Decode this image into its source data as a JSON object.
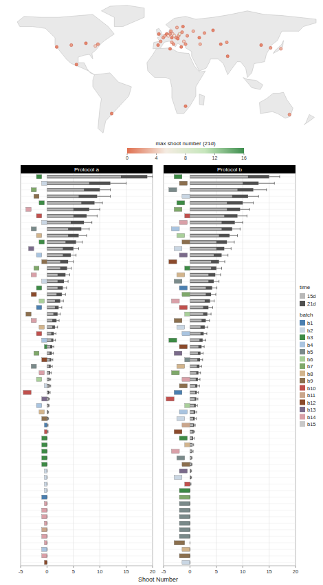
{
  "chart_data": [
    {
      "type": "map",
      "xlim": [
        -180,
        180
      ],
      "ylim": [
        -60,
        85
      ],
      "tick_labels": false,
      "points": {
        "lon": [
          2,
          4,
          6,
          8,
          10,
          13,
          12,
          15,
          17,
          20,
          19,
          21,
          24,
          25,
          18,
          11,
          -3,
          -1,
          -4,
          12,
          14,
          23,
          26,
          30,
          37,
          44,
          28,
          50,
          45,
          69,
          76,
          60,
          -74,
          -88,
          -77,
          -122,
          -105,
          -99,
          139,
          127,
          116,
          -58,
          149,
          77,
          10,
          28
        ],
        "lat": [
          48,
          50,
          52,
          50,
          52,
          52,
          48,
          50,
          48,
          50,
          47,
          52,
          54,
          60,
          59,
          55,
          52,
          44,
          40,
          43,
          41,
          38,
          44,
          50,
          55,
          48,
          41,
          53,
          41,
          41,
          43,
          56,
          41,
          42,
          39,
          38,
          40,
          19,
          36,
          37,
          40,
          -34,
          -35,
          28,
          36,
          -26
        ],
        "values": [
          2,
          3,
          1,
          5,
          2,
          4,
          1,
          6,
          2,
          3,
          1,
          8,
          2,
          1,
          3,
          2,
          1,
          2,
          1,
          3,
          2,
          1,
          4,
          2,
          3,
          1,
          2,
          2,
          3,
          1,
          2,
          1,
          2,
          1,
          4,
          1,
          2,
          1,
          3,
          2,
          1,
          1,
          2,
          1,
          1,
          1
        ]
      },
      "colorbar": {
        "title": "max shoot number (21d)",
        "range": [
          0,
          16
        ],
        "ticks": [
          0,
          4,
          8,
          12,
          16
        ],
        "colors": [
          "#e07050",
          "#f4ece2",
          "#c6e6bc",
          "#3f8f4f"
        ]
      }
    },
    {
      "type": "bar",
      "orientation": "horizontal",
      "title": "Protocol a",
      "x_label": "Shoot Number",
      "xlim": [
        -5,
        20
      ],
      "xticks": [
        -5,
        0,
        5,
        10,
        15,
        20
      ],
      "grid": true,
      "tick_labels": "x",
      "legend": "right",
      "categories": [
        null,
        null,
        null,
        null,
        null,
        null,
        null,
        null,
        null,
        null,
        null,
        null,
        null,
        null,
        null,
        null,
        null,
        null,
        null,
        null,
        null,
        null,
        null,
        null,
        null,
        null,
        null,
        null,
        null,
        null,
        null,
        null,
        null,
        null,
        null,
        null,
        null,
        null,
        null,
        null,
        null,
        null,
        null,
        null,
        null,
        null,
        null,
        null,
        null,
        null,
        null,
        null,
        null,
        null,
        null,
        null,
        null,
        null,
        null,
        null
      ],
      "series": [
        {
          "name": "15d",
          "color": "#b8b8b8",
          "values": [
            14,
            8,
            7,
            6,
            6.5,
            5,
            5,
            4.5,
            4,
            4,
            3.5,
            3,
            3,
            2.5,
            2.5,
            2,
            2,
            2,
            1.8,
            1.5,
            1.5,
            1.2,
            1,
            1,
            0.8,
            0.8,
            0.6,
            0.5,
            0.5,
            0.4,
            0.4,
            0.3,
            0.3,
            0.2,
            0.2,
            0.2,
            0.1,
            0.1,
            0,
            0,
            0,
            0,
            0,
            0,
            0,
            0,
            0,
            0,
            0,
            0,
            0,
            0,
            0,
            0,
            0,
            0,
            0,
            0,
            0,
            0
          ]
        },
        {
          "name": "21d",
          "color": "#505050",
          "values": [
            19,
            12,
            10,
            9.5,
            9,
            8,
            7.5,
            7,
            6.5,
            6,
            5.5,
            5,
            4.5,
            4,
            3.8,
            3.5,
            3.2,
            3,
            2.8,
            2.5,
            2.2,
            2,
            1.8,
            1.5,
            1.3,
            1.2,
            1,
            0.9,
            0.8,
            0.7,
            0.6,
            0.5,
            0.5,
            0.4,
            0.3,
            0.3,
            0.2,
            0.2,
            0.1,
            0.1,
            0,
            0,
            0,
            0,
            0,
            0,
            0,
            0,
            0,
            0,
            0,
            0,
            0,
            0,
            0,
            0,
            0,
            0,
            0,
            0
          ],
          "errors": [
            1,
            3,
            2,
            2.5,
            1.5,
            2,
            2,
            1.5,
            1.5,
            1.5,
            1.2,
            1,
            1,
            1,
            0.8,
            0.8,
            0.8,
            0.7,
            0.7,
            0.6,
            0.6,
            0.5,
            0.5,
            0.5,
            0.4,
            0.4,
            0.3,
            0.3,
            0.3,
            0.3,
            0.2,
            0.2,
            0.2,
            0.2,
            0.2,
            0.1,
            0.1,
            0.1,
            0.1,
            0.1,
            0,
            0,
            0,
            0,
            0,
            0,
            0,
            0,
            0,
            0,
            0,
            0,
            0,
            0,
            0,
            0,
            0,
            0,
            0,
            0
          ]
        }
      ],
      "batch": [
        "b3",
        "b2",
        "b7",
        "b9",
        "b3",
        "b14",
        "b10",
        "b2",
        "b5",
        "b8",
        "b3",
        "b13",
        "b4",
        "b9",
        "b7",
        "b14",
        "b2",
        "b3",
        "b12",
        "b6",
        "b1",
        "b9",
        "b14",
        "b8",
        "b10",
        "b4",
        "b3",
        "b7",
        "b12",
        "b5",
        "b14",
        "b6",
        "b2",
        "b10",
        "b13",
        "b4",
        "b8",
        "b9",
        "b1",
        "b10",
        "b3",
        "b3",
        "b3",
        "b3",
        "b3",
        "b2",
        "b2",
        "b2",
        "b2",
        "b1",
        "b14",
        "b14",
        "b14",
        "b14",
        "b11",
        "b14",
        "b14",
        "b4",
        "b14",
        "b12"
      ],
      "batch_lo": [
        -2,
        -1,
        -3,
        -2.5,
        -1.5,
        -4,
        -2,
        -1,
        -3,
        -2,
        -1.5,
        -3.5,
        -2,
        -1,
        -2.5,
        -3,
        -1,
        -2,
        -3,
        -1.5,
        -2,
        -4,
        -3,
        -1.5,
        -2,
        -1,
        -0.5,
        -2.5,
        -1,
        -3,
        -1.5,
        -2,
        -0.5,
        -4.5,
        -1,
        -2,
        -1.5,
        -1,
        -0.5,
        -0.5,
        -1,
        -1,
        -1,
        -1,
        -1,
        -0.5,
        -0.5,
        -0.5,
        -0.5,
        -1,
        -0.5,
        -1,
        -1,
        -0.5,
        -1,
        -1,
        -0.5,
        -1,
        -1,
        -0.5
      ],
      "batch_hi": [
        -1,
        0,
        -2,
        -1.5,
        -0.5,
        -3,
        -1,
        0,
        -2,
        -1,
        -0.5,
        -2.5,
        -1,
        0,
        -1.5,
        -2,
        0,
        -1,
        -2,
        -0.5,
        -1,
        -3,
        -2,
        -0.5,
        -1,
        0,
        0,
        -1.5,
        0,
        -2,
        -0.5,
        -1,
        0,
        -3,
        0,
        -1,
        -0.5,
        0,
        0,
        0,
        0,
        0,
        0,
        0,
        0,
        0,
        0,
        0,
        0,
        0,
        0,
        0,
        0,
        0,
        0,
        0,
        0,
        0,
        0,
        0
      ]
    },
    {
      "type": "bar",
      "orientation": "horizontal",
      "title": "Protocol b",
      "xlim": [
        -5,
        20
      ],
      "xticks": [
        -5,
        0,
        5,
        10,
        15,
        20
      ],
      "grid": true,
      "tick_labels": "x",
      "categories": [
        null,
        null,
        null,
        null,
        null,
        null,
        null,
        null,
        null,
        null,
        null,
        null,
        null,
        null,
        null,
        null,
        null,
        null,
        null,
        null,
        null,
        null,
        null,
        null,
        null,
        null,
        null,
        null,
        null,
        null,
        null,
        null,
        null,
        null,
        null,
        null,
        null,
        null,
        null,
        null,
        null,
        null,
        null,
        null,
        null,
        null,
        null,
        null,
        null,
        null,
        null,
        null,
        null,
        null,
        null,
        null,
        null,
        null,
        null,
        null
      ],
      "series": [
        {
          "color": "#b8b8b8",
          "values": [
            11,
            10,
            9,
            8,
            7,
            7,
            6.5,
            6,
            6,
            5.5,
            5,
            5,
            4.5,
            4,
            4,
            3.5,
            3.5,
            3,
            3,
            2.8,
            2.5,
            2.5,
            2.2,
            2,
            2,
            1.8,
            1.6,
            1.5,
            1.4,
            1.3,
            1.2,
            1.1,
            1,
            1,
            0.9,
            0.8,
            0.7,
            0.6,
            0.6,
            0.5,
            0.4,
            0.4,
            0.3,
            0.2,
            0.2,
            0.1,
            0.1,
            0,
            0,
            0,
            0,
            0,
            0,
            0,
            0,
            0,
            0,
            0,
            0,
            0
          ]
        },
        {
          "color": "#505050",
          "values": [
            15,
            13,
            12,
            11,
            10,
            9.5,
            9,
            8.5,
            8,
            7.5,
            7,
            6.5,
            6,
            5.5,
            5,
            4.8,
            4.5,
            4.2,
            4,
            3.8,
            3.5,
            3.3,
            3,
            2.8,
            2.6,
            2.4,
            2.2,
            2,
            1.9,
            1.8,
            1.6,
            1.5,
            1.4,
            1.3,
            1.2,
            1.1,
            1,
            0.9,
            0.8,
            0.7,
            0.6,
            0.5,
            0.4,
            0.3,
            0.3,
            0.2,
            0.2,
            0.1,
            0,
            0,
            0,
            0,
            0,
            0,
            0,
            0,
            0,
            0,
            0,
            0
          ],
          "errors": [
            2,
            3,
            2.5,
            2,
            2,
            1.8,
            1.8,
            1.5,
            1.5,
            1.5,
            1.4,
            1.3,
            1.2,
            1.1,
            1,
            1,
            1,
            0.9,
            0.9,
            0.8,
            0.8,
            0.7,
            0.7,
            0.6,
            0.6,
            0.6,
            0.5,
            0.5,
            0.5,
            0.4,
            0.4,
            0.4,
            0.4,
            0.3,
            0.3,
            0.3,
            0.3,
            0.3,
            0.2,
            0.2,
            0.2,
            0.2,
            0.2,
            0.1,
            0.1,
            0.1,
            0.1,
            0.1,
            0,
            0,
            0,
            0,
            0,
            0,
            0,
            0,
            0,
            0,
            0,
            0
          ]
        }
      ],
      "batch": [
        "b3",
        "b9",
        "b5",
        "b2",
        "b3",
        "b7",
        "b10",
        "b14",
        "b4",
        "b6",
        "b9",
        "b2",
        "b13",
        "b12",
        "b3",
        "b8",
        "b5",
        "b1",
        "b7",
        "b14",
        "b10",
        "b6",
        "b9",
        "b2",
        "b4",
        "b3",
        "b12",
        "b13",
        "b5",
        "b8",
        "b7",
        "b14",
        "b9",
        "b1",
        "b10",
        "b6",
        "b4",
        "b2",
        "b11",
        "b12",
        "b3",
        "b8",
        "b14",
        "b5",
        "b9",
        "b13",
        "b2",
        "b10",
        "b3",
        "b7",
        "b5",
        "b5",
        "b5",
        "b5",
        "b5",
        "b5",
        "b9",
        "b8",
        "b9",
        "b2"
      ],
      "batch_lo": [
        -3,
        -2,
        -4,
        -1.5,
        -2.5,
        -3,
        -1,
        -2,
        -3.5,
        -2.5,
        -1.5,
        -3,
        -2,
        -4,
        -1,
        -2.5,
        -3,
        -2,
        -1.5,
        -3.5,
        -2,
        -1,
        -3,
        -2.5,
        -1.5,
        -4,
        -2,
        -3,
        -1,
        -2.5,
        -3.5,
        -1.5,
        -2,
        -3,
        -4.5,
        -1,
        -2,
        -2.5,
        -1.5,
        -3,
        -2,
        -1,
        -3.5,
        -2.5,
        -1.5,
        -2,
        -3,
        -1,
        -2,
        -2,
        -2,
        -2,
        -2,
        -2,
        -2,
        -2,
        -3,
        -1.5,
        -2,
        -1.5
      ],
      "batch_hi": [
        -1.5,
        -0.5,
        -2.5,
        0,
        -1,
        -1.5,
        0,
        -0.5,
        -2,
        -1,
        0,
        -1.5,
        -0.5,
        -2.5,
        0,
        -1,
        -1.5,
        -0.5,
        0,
        -2,
        -0.5,
        0,
        -1.5,
        -1,
        0,
        -2.5,
        -0.5,
        -1.5,
        0,
        -1,
        -2,
        0,
        -0.5,
        -1.5,
        -3,
        0,
        -0.5,
        -1,
        0,
        -1.5,
        -0.5,
        0,
        -2,
        -1,
        0,
        -0.5,
        -1.5,
        0,
        0,
        0,
        0,
        0,
        0,
        0,
        0,
        0,
        -1,
        0,
        0,
        0
      ]
    }
  ],
  "legend_block": {
    "time_title": "time",
    "batch_title": "batch",
    "names": [
      "b1",
      "b2",
      "b3",
      "b4",
      "b5",
      "b6",
      "b7",
      "b8",
      "b9",
      "b10",
      "b11",
      "b12",
      "b13",
      "b14",
      "b15"
    ],
    "colors": [
      "#4a7fb0",
      "#c9d6e3",
      "#3d8a45",
      "#a9c4e0",
      "#7a8a8a",
      "#a9cf9a",
      "#7fa86a",
      "#d2b48c",
      "#8b6f4e",
      "#c0504d",
      "#c9a58b",
      "#8b4a2b",
      "#7a6a8a",
      "#d9a0a8",
      "#c8c8c8"
    ]
  }
}
